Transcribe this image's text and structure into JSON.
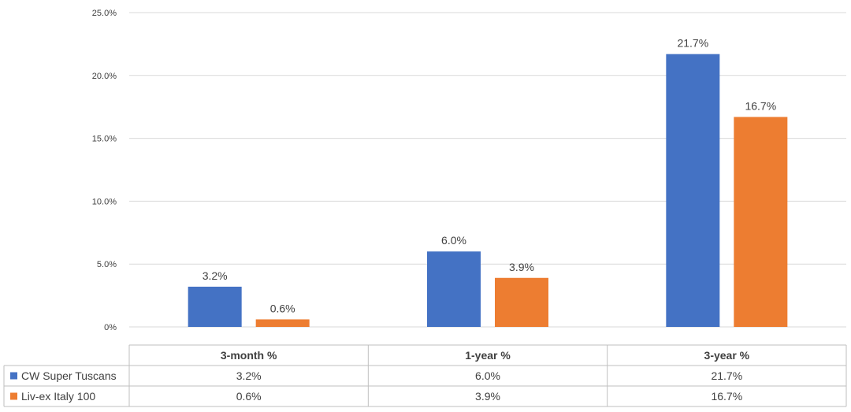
{
  "chart_data": {
    "type": "bar",
    "categories": [
      "3-month %",
      "1-year %",
      "3-year %"
    ],
    "series": [
      {
        "name": "CW Super Tuscans",
        "values": [
          3.2,
          6.0,
          21.7
        ],
        "labels": [
          "3.2%",
          "6.0%",
          "21.7%"
        ],
        "color": "#4472C4"
      },
      {
        "name": "Liv-ex Italy 100",
        "values": [
          0.6,
          3.9,
          16.7
        ],
        "labels": [
          "0.6%",
          "3.9%",
          "16.7%"
        ],
        "color": "#ED7D31"
      }
    ],
    "ylim": [
      0,
      25
    ],
    "yticks": [
      0,
      5,
      10,
      15,
      20,
      25
    ],
    "ytick_labels": [
      "0%",
      "5.0%",
      "10.0%",
      "15.0%",
      "20.0%",
      "25.0%"
    ],
    "grid": true,
    "legend": "data-table-below",
    "title": "",
    "xlabel": "",
    "ylabel": ""
  }
}
